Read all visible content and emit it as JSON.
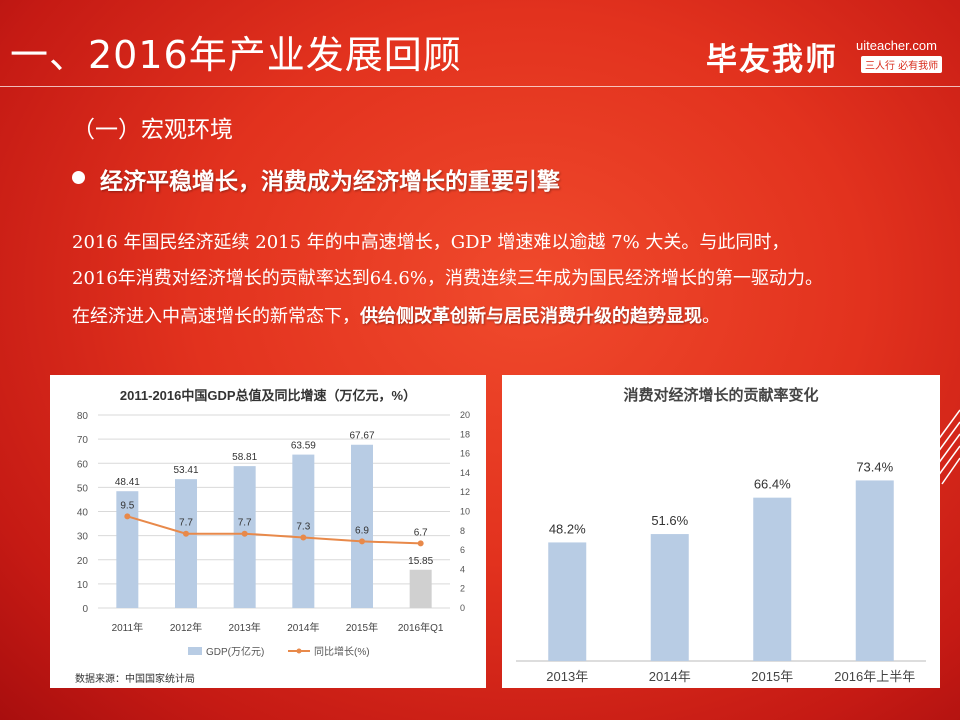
{
  "header": {
    "title": "一、2016年产业发展回顾",
    "logo": {
      "brand": "毕友我师",
      "url": "uiteacher.com",
      "slogan": "三人行 必有我师"
    }
  },
  "section_heading": "（一）宏观环境",
  "bullet": "经济平稳增长，消费成为经济增长的重要引擎",
  "paragraph": {
    "line1": "2016 年国民经济延续 2015 年的中高速增长，GDP 增速难以逾越 7% 大关。与此同时，",
    "line2": "2016年消费对经济增长的贡献率达到64.6%，消费连续三年成为国民经济增长的第一驱动力。",
    "line3_plain": "在经济进入中高速增长的新常态下，",
    "line3_bold": "供给侧改革创新与居民消费升级的趋势显现",
    "line3_end": "。"
  },
  "chart_data": [
    {
      "type": "bar",
      "title": "2011-2016中国GDP总值及同比增速（万亿元，%）",
      "categories": [
        "2011年",
        "2012年",
        "2013年",
        "2014年",
        "2015年",
        "2016年Q1"
      ],
      "series": [
        {
          "name": "GDP(万亿元)",
          "type": "bar",
          "values": [
            48.41,
            53.41,
            58.81,
            63.59,
            67.67,
            15.85
          ],
          "axis": "left"
        },
        {
          "name": "同比增长(%)",
          "type": "line",
          "values": [
            9.5,
            7.7,
            7.7,
            7.3,
            6.9,
            6.7
          ],
          "axis": "right"
        }
      ],
      "ylim": [
        0,
        80
      ],
      "y_ticks": [
        0,
        10,
        20,
        30,
        40,
        50,
        60,
        70,
        80
      ],
      "y2lim": [
        0,
        20
      ],
      "y2_ticks": [
        0,
        2,
        4,
        6,
        8,
        10,
        12,
        14,
        16,
        18,
        20
      ],
      "legend": "bottom",
      "source": "数据来源：中国国家统计局",
      "colors": {
        "bar": "#b8cce4",
        "bar_last": "#d0d0d0",
        "line": "#e8894a",
        "grid": "#d9d9d9"
      }
    },
    {
      "type": "bar",
      "title": "消费对经济增长的贡献率变化",
      "categories": [
        "2013年",
        "2014年",
        "2015年",
        "2016年上半年"
      ],
      "values": [
        48.2,
        51.6,
        66.4,
        73.4
      ],
      "value_labels": [
        "48.2%",
        "51.6%",
        "66.4%",
        "73.4%"
      ],
      "ylim": [
        0,
        100
      ],
      "colors": {
        "bar": "#b8cce4"
      }
    }
  ]
}
